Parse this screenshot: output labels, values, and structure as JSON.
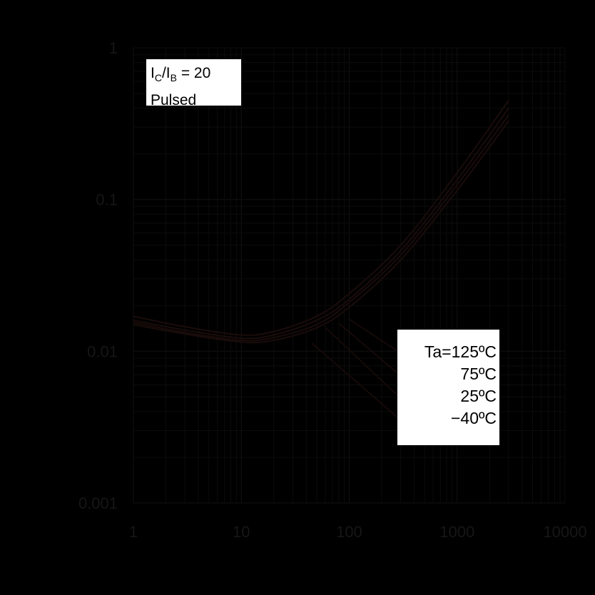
{
  "chart_data": {
    "type": "line",
    "x_scale": "log",
    "y_scale": "log",
    "xlim": [
      1,
      10000
    ],
    "ylim": [
      0.001,
      1
    ],
    "grid": true,
    "x_tick_labels": [
      "1",
      "10",
      "100",
      "1000",
      "10000"
    ],
    "y_tick_labels": [
      "1",
      "0.1",
      "0.01",
      "0.001"
    ],
    "annotation": {
      "ratio_main": "I",
      "ratio_sub1": "C",
      "ratio_mid": "/I",
      "ratio_sub2": "B",
      "ratio_value": " = 20",
      "mode": "Pulsed"
    },
    "legend_placement": "right",
    "x": [
      1,
      3,
      10,
      20,
      50,
      100,
      300,
      1000,
      3000
    ],
    "series": [
      {
        "name": "Ta=125ºC",
        "values": [
          0.017,
          0.0145,
          0.0128,
          0.0135,
          0.017,
          0.024,
          0.05,
          0.15,
          0.45
        ]
      },
      {
        "name": "75ºC",
        "values": [
          0.016,
          0.0138,
          0.0122,
          0.0128,
          0.016,
          0.022,
          0.046,
          0.135,
          0.4
        ]
      },
      {
        "name": "25ºC",
        "values": [
          0.0155,
          0.0133,
          0.0118,
          0.0123,
          0.015,
          0.021,
          0.043,
          0.125,
          0.36
        ]
      },
      {
        "name": "−40ºC",
        "values": [
          0.015,
          0.013,
          0.0115,
          0.0118,
          0.0143,
          0.0195,
          0.04,
          0.115,
          0.33
        ]
      }
    ],
    "colors": {
      "background": "#000000",
      "grid": "#0c0c0c",
      "curve": "#1a0c0a",
      "box": "#ffffff"
    }
  }
}
